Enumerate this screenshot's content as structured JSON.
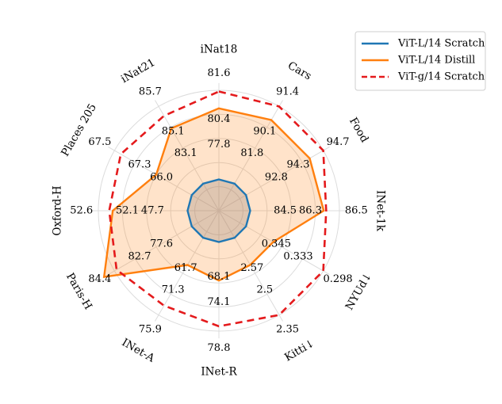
{
  "chart_data": {
    "type": "radar",
    "axes": [
      "iNat18",
      "Cars",
      "Food",
      "INet-1k",
      "NYUd↓",
      "Kitti↓",
      "INet-R",
      "INet-A",
      "Paris-H",
      "Oxford-H",
      "Places 205",
      "iNat21"
    ],
    "series": [
      {
        "name": "ViT-L/14 Scratch",
        "color": "#1f77b4",
        "dash": "solid",
        "filled": false,
        "values": [
          "77.8",
          "81.8",
          "92.8",
          "84.5",
          "0.345",
          "2.57",
          "68.1",
          "61.7",
          "77.6",
          "47.7",
          "66.0",
          "83.1"
        ],
        "radius": [
          0.26,
          0.26,
          0.26,
          0.26,
          0.26,
          0.26,
          0.26,
          0.26,
          0.26,
          0.26,
          0.26,
          0.26
        ]
      },
      {
        "name": "ViT-L/14 Distill",
        "color": "#ff7f0e",
        "dash": "solid",
        "filled": true,
        "values": [
          "80.4",
          "90.1",
          "94.3",
          "86.3",
          "0.333",
          "2.5",
          "74.1",
          "71.3",
          "82.7",
          "52.1",
          "67.3",
          "85.1"
        ],
        "radius": [
          0.85,
          0.87,
          0.87,
          0.87,
          0.52,
          0.52,
          0.58,
          0.52,
          1.1,
          0.88,
          0.6,
          0.79
        ]
      },
      {
        "name": "ViT-g/14 Scratch",
        "color": "#e41a1c",
        "dash": "dashed",
        "filled": false,
        "values": [
          "81.6",
          "91.4",
          "94.7",
          "86.5",
          "0.298",
          "2.35",
          "78.8",
          "75.9",
          "84.4",
          "52.6",
          "67.5",
          "85.7"
        ],
        "radius": [
          0.99,
          1.0,
          1.0,
          0.89,
          1.0,
          1.0,
          0.96,
          0.91,
          0.98,
          0.91,
          0.94,
          0.91
        ]
      }
    ],
    "legend_position": "top-right"
  }
}
